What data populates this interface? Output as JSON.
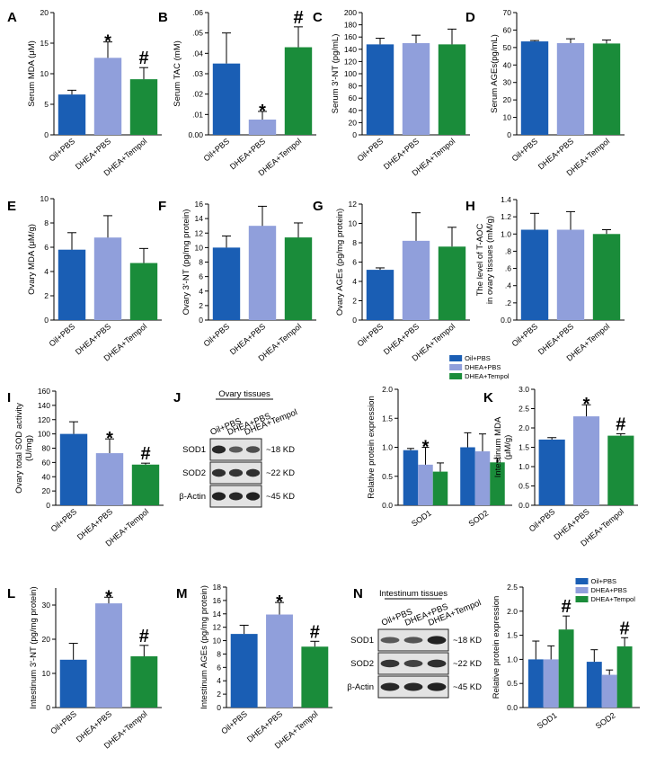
{
  "colors": {
    "oil": "#1a5eb4",
    "dhea": "#909fdb",
    "tempol": "#1a8c3a"
  },
  "panels": {
    "A": "A",
    "B": "B",
    "C": "C",
    "D": "D",
    "E": "E",
    "F": "F",
    "G": "G",
    "H": "H",
    "I": "I",
    "J": "J",
    "K": "K",
    "L": "L",
    "M": "M",
    "N": "N"
  },
  "blots": {
    "J": {
      "title": "Ovary tissues",
      "lanes": [
        "Oil+PBS",
        "DHEA+PBS",
        "DHEA+Tempol"
      ],
      "rows": [
        {
          "protein": "SOD1",
          "size": "~18 KD"
        },
        {
          "protein": "SOD2",
          "size": "~22 KD"
        },
        {
          "protein": "β-Actin",
          "size": "~45 KD"
        }
      ]
    },
    "N": {
      "title": "Intestinum tissues",
      "lanes": [
        "Oil+PBS",
        "DHEA+PBS",
        "DHEA+Tempol"
      ],
      "rows": [
        {
          "protein": "SOD1",
          "size": "~18 KD"
        },
        {
          "protein": "SOD2",
          "size": "~22 KD"
        },
        {
          "protein": "β-Actin",
          "size": "~45 KD"
        }
      ]
    }
  },
  "chart_data": [
    {
      "panel": "A",
      "type": "bar",
      "categories": [
        "Oil+PBS",
        "DHEA+PBS",
        "DHEA+Tempol"
      ],
      "ylabel": "Serum MDA (μM)",
      "ylim": [
        0,
        20
      ],
      "yticks": [
        0,
        5,
        10,
        15,
        20
      ],
      "tick_labels": [
        "0",
        "5",
        "10",
        "15",
        "20"
      ],
      "values": [
        6.6,
        12.6,
        9.1
      ],
      "errors": [
        0.7,
        2.6,
        1.9
      ],
      "marks": [
        "",
        "*",
        "#"
      ]
    },
    {
      "panel": "B",
      "type": "bar",
      "categories": [
        "Oil+PBS",
        "DHEA+PBS",
        "DHEA+Tempol"
      ],
      "ylabel": "Serum TAC (mM)",
      "ylim": [
        0,
        0.06
      ],
      "yticks": [
        0,
        0.01,
        0.02,
        0.03,
        0.04,
        0.05,
        0.06
      ],
      "tick_labels": [
        "0.00",
        ".01",
        ".02",
        ".03",
        ".04",
        ".05",
        ".06"
      ],
      "values": [
        0.035,
        0.0075,
        0.043
      ],
      "errors": [
        0.015,
        0.004,
        0.01
      ],
      "marks": [
        "",
        "*",
        "#"
      ]
    },
    {
      "panel": "C",
      "type": "bar",
      "categories": [
        "Oil+PBS",
        "DHEA+PBS",
        "DHEA+Tempol"
      ],
      "ylabel": "Serum 3'-NT (pg/mL)",
      "ylim": [
        0,
        200
      ],
      "yticks": [
        0,
        20,
        40,
        60,
        80,
        100,
        120,
        140,
        160,
        180,
        200
      ],
      "tick_labels": [
        "0",
        "20",
        "40",
        "60",
        "80",
        "100",
        "120",
        "140",
        "160",
        "180",
        "200"
      ],
      "values": [
        148,
        150,
        148
      ],
      "errors": [
        10,
        13,
        25
      ],
      "marks": [
        "",
        "",
        ""
      ]
    },
    {
      "panel": "D",
      "type": "bar",
      "categories": [
        "Oil+PBS",
        "DHEA+PBS",
        "DHEA+Tempol"
      ],
      "ylabel": "Serum AGEs(pg/mL)",
      "ylim": [
        0,
        70
      ],
      "yticks": [
        0,
        10,
        20,
        30,
        40,
        50,
        60,
        70
      ],
      "tick_labels": [
        "0",
        "10",
        "20",
        "30",
        "40",
        "50",
        "60",
        "70"
      ],
      "values": [
        53.5,
        52.5,
        52.3
      ],
      "errors": [
        0.5,
        2.5,
        2.0
      ],
      "marks": [
        "",
        "",
        ""
      ]
    },
    {
      "panel": "E",
      "type": "bar",
      "categories": [
        "Oil+PBS",
        "DHEA+PBS",
        "DHEA+Tempol"
      ],
      "ylabel": "Ovary MDA (μM/g)",
      "ylim": [
        0,
        10
      ],
      "yticks": [
        0,
        2,
        4,
        6,
        8,
        10
      ],
      "tick_labels": [
        "0",
        "2",
        "4",
        "6",
        "8",
        "10"
      ],
      "values": [
        5.8,
        6.8,
        4.7
      ],
      "errors": [
        1.4,
        1.8,
        1.2
      ],
      "marks": [
        "",
        "",
        ""
      ]
    },
    {
      "panel": "F",
      "type": "bar",
      "categories": [
        "Oil+PBS",
        "DHEA+PBS",
        "DHEA+Tempol"
      ],
      "ylabel": "Ovary 3'-NT (pg/mg protein)",
      "ylim": [
        0,
        16
      ],
      "yticks": [
        0,
        2,
        4,
        6,
        8,
        10,
        12,
        14,
        16
      ],
      "tick_labels": [
        "0",
        "2",
        "4",
        "6",
        "8",
        "10",
        "12",
        "14",
        "16"
      ],
      "values": [
        10.0,
        13.0,
        11.4
      ],
      "errors": [
        1.6,
        2.7,
        2.0
      ],
      "marks": [
        "",
        "",
        ""
      ]
    },
    {
      "panel": "G",
      "type": "bar",
      "categories": [
        "Oil+PBS",
        "DHEA+PBS",
        "DHEA+Tempol"
      ],
      "ylabel": "Ovary AGEs (pg/mg protein)",
      "ylim": [
        0,
        12
      ],
      "yticks": [
        0,
        2,
        4,
        6,
        8,
        10,
        12
      ],
      "tick_labels": [
        "0",
        "2",
        "4",
        "6",
        "8",
        "10",
        "12"
      ],
      "values": [
        5.2,
        8.2,
        7.6
      ],
      "errors": [
        0.2,
        2.9,
        2.0
      ],
      "marks": [
        "",
        "",
        ""
      ]
    },
    {
      "panel": "H",
      "type": "bar",
      "categories": [
        "Oil+PBS",
        "DHEA+PBS",
        "DHEA+Tempol"
      ],
      "ylabel": "The level of T-AOC\nin ovary tissues (mM/g)",
      "ylim": [
        0,
        1.4
      ],
      "yticks": [
        0,
        0.2,
        0.4,
        0.6,
        0.8,
        1.0,
        1.2,
        1.4
      ],
      "tick_labels": [
        "0.0",
        ".2",
        ".4",
        ".6",
        ".8",
        "1.0",
        "1.2",
        "1.4"
      ],
      "values": [
        1.05,
        1.05,
        1.0
      ],
      "errors": [
        0.19,
        0.21,
        0.05
      ],
      "marks": [
        "",
        "",
        ""
      ]
    },
    {
      "panel": "I",
      "type": "bar",
      "categories": [
        "Oil+PBS",
        "DHEA+PBS",
        "DHEA+Tempol"
      ],
      "ylabel": "Ovary total SOD activity\n(U/mg)",
      "ylim": [
        0,
        160
      ],
      "yticks": [
        0,
        20,
        40,
        60,
        80,
        100,
        120,
        140,
        160
      ],
      "tick_labels": [
        "0",
        "20",
        "40",
        "60",
        "80",
        "100",
        "120",
        "140",
        "160"
      ],
      "values": [
        100,
        73,
        57
      ],
      "errors": [
        17,
        20,
        2
      ],
      "marks": [
        "",
        "*",
        "#"
      ]
    },
    {
      "panel": "J",
      "type": "bar",
      "categories": [
        "SOD1",
        "SOD2"
      ],
      "series_names": [
        "Oil+PBS",
        "DHEA+PBS",
        "DHEA+Tempol"
      ],
      "ylabel": "Relative protein expression",
      "ylim": [
        0,
        2.0
      ],
      "yticks": [
        0,
        0.5,
        1.0,
        1.5,
        2.0
      ],
      "tick_labels": [
        "0.0",
        "0.5",
        "1.0",
        "1.5",
        "2.0"
      ],
      "values": [
        [
          0.95,
          0.7,
          0.58
        ],
        [
          1.0,
          0.93,
          0.74
        ]
      ],
      "errors": [
        [
          0.03,
          0.3,
          0.15
        ],
        [
          0.25,
          0.3,
          0.07
        ]
      ],
      "marks": [
        [
          "",
          "*",
          ""
        ],
        [
          "",
          "",
          ""
        ]
      ]
    },
    {
      "panel": "K",
      "type": "bar",
      "categories": [
        "Oil+PBS",
        "DHEA+PBS",
        "DHEA+Tempol"
      ],
      "ylabel": "Intestinum MDA\n(μM/g)",
      "ylim": [
        0,
        3.0
      ],
      "yticks": [
        0,
        0.5,
        1.0,
        1.5,
        2.0,
        2.5,
        3.0
      ],
      "tick_labels": [
        "0.0",
        "0.5",
        "1.0",
        "1.5",
        "2.0",
        "2.5",
        "3.0"
      ],
      "values": [
        1.7,
        2.3,
        1.8
      ],
      "errors": [
        0.05,
        0.3,
        0.05
      ],
      "marks": [
        "",
        "*",
        "#"
      ]
    },
    {
      "panel": "L",
      "type": "bar",
      "categories": [
        "Oil+PBS",
        "DHEA+PBS",
        "DHEA+Tempol"
      ],
      "ylabel": "Intestinum 3'-NT (pg/mg protein)",
      "ylim": [
        0,
        35
      ],
      "yticks": [
        0,
        10,
        20,
        30
      ],
      "tick_labels": [
        "0",
        "10",
        "20",
        "30"
      ],
      "values": [
        14,
        30.5,
        15
      ],
      "errors": [
        4.8,
        1.8,
        3.2
      ],
      "marks": [
        "",
        "*",
        "#"
      ]
    },
    {
      "panel": "M",
      "type": "bar",
      "categories": [
        "Oil+PBS",
        "DHEA+PBS",
        "DHEA+Tempol"
      ],
      "ylabel": "Intestinum AGEs (pg/mg protein)",
      "ylim": [
        0,
        18
      ],
      "yticks": [
        0,
        2,
        4,
        6,
        8,
        10,
        12,
        14,
        16,
        18
      ],
      "tick_labels": [
        "0",
        "2",
        "4",
        "6",
        "8",
        "10",
        "12",
        "14",
        "16",
        "18"
      ],
      "values": [
        11.0,
        13.9,
        9.1
      ],
      "errors": [
        1.3,
        1.8,
        0.8
      ],
      "marks": [
        "",
        "*",
        "#"
      ]
    },
    {
      "panel": "N",
      "type": "bar",
      "categories": [
        "SOD1",
        "SOD2"
      ],
      "series_names": [
        "Oil+PBS",
        "DHEA+PBS",
        "DHEA+Tempol"
      ],
      "ylabel": "Relative protein expression",
      "ylim": [
        0,
        2.5
      ],
      "yticks": [
        0,
        0.5,
        1.0,
        1.5,
        2.0,
        2.5
      ],
      "tick_labels": [
        "0.0",
        "0.5",
        "1.0",
        "1.5",
        "2.0",
        "2.5"
      ],
      "values": [
        [
          1.0,
          1.0,
          1.62
        ],
        [
          0.95,
          0.68,
          1.27
        ]
      ],
      "errors": [
        [
          0.38,
          0.28,
          0.28
        ],
        [
          0.25,
          0.1,
          0.18
        ]
      ],
      "marks": [
        [
          "",
          "",
          "#"
        ],
        [
          "",
          "",
          "#"
        ]
      ]
    }
  ]
}
